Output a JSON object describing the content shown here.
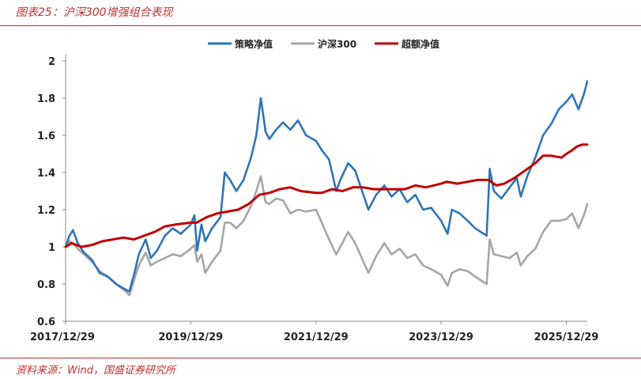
{
  "caption": "图表25：沪深300增强组合表现",
  "source": "资料来源：Wind，国盛证券研究所",
  "chart_data": {
    "type": "line",
    "title": "",
    "xlabel": "",
    "ylabel": "",
    "ylim": [
      0.6,
      2.0
    ],
    "yticks": [
      "0.6",
      "0.8",
      "1",
      "1.2",
      "1.4",
      "1.6",
      "1.8",
      "2"
    ],
    "x_range": [
      "2017/12/29",
      "2026/04/30"
    ],
    "xticks": [
      "2017/12/29",
      "2019/12/29",
      "2021/12/29",
      "2023/12/29",
      "2025/12/29"
    ],
    "grid": false,
    "legend_position": "top",
    "series": [
      {
        "name": "策略净值",
        "color": "#2e75b6",
        "points": [
          [
            "2017/12/29",
            1.0
          ],
          [
            "2018/01/20",
            1.06
          ],
          [
            "2018/02/10",
            1.09
          ],
          [
            "2018/03/10",
            1.02
          ],
          [
            "2018/04/15",
            0.97
          ],
          [
            "2018/06/01",
            0.93
          ],
          [
            "2018/07/15",
            0.86
          ],
          [
            "2018/09/01",
            0.84
          ],
          [
            "2018/10/20",
            0.8
          ],
          [
            "2018/12/15",
            0.77
          ],
          [
            "2019/01/05",
            0.76
          ],
          [
            "2019/02/01",
            0.85
          ],
          [
            "2019/03/01",
            0.96
          ],
          [
            "2019/04/10",
            1.04
          ],
          [
            "2019/05/10",
            0.94
          ],
          [
            "2019/06/15",
            0.98
          ],
          [
            "2019/08/01",
            1.06
          ],
          [
            "2019/09/15",
            1.1
          ],
          [
            "2019/11/01",
            1.07
          ],
          [
            "2019/12/29",
            1.12
          ],
          [
            "2020/01/20",
            1.17
          ],
          [
            "2020/02/05",
            0.98
          ],
          [
            "2020/03/01",
            1.12
          ],
          [
            "2020/03/23",
            1.03
          ],
          [
            "2020/05/01",
            1.1
          ],
          [
            "2020/06/20",
            1.16
          ],
          [
            "2020/07/15",
            1.4
          ],
          [
            "2020/08/15",
            1.36
          ],
          [
            "2020/09/20",
            1.3
          ],
          [
            "2020/11/01",
            1.36
          ],
          [
            "2020/12/15",
            1.48
          ],
          [
            "2021/01/15",
            1.6
          ],
          [
            "2021/02/10",
            1.8
          ],
          [
            "2021/03/10",
            1.62
          ],
          [
            "2021/04/01",
            1.58
          ],
          [
            "2021/05/10",
            1.63
          ],
          [
            "2021/06/20",
            1.67
          ],
          [
            "2021/08/01",
            1.63
          ],
          [
            "2021/09/15",
            1.68
          ],
          [
            "2021/11/01",
            1.6
          ],
          [
            "2021/12/29",
            1.57
          ],
          [
            "2022/02/01",
            1.52
          ],
          [
            "2022/03/15",
            1.47
          ],
          [
            "2022/04/26",
            1.3
          ],
          [
            "2022/05/20",
            1.36
          ],
          [
            "2022/07/05",
            1.45
          ],
          [
            "2022/08/15",
            1.41
          ],
          [
            "2022/10/31",
            1.2
          ],
          [
            "2022/12/15",
            1.28
          ],
          [
            "2023/02/01",
            1.33
          ],
          [
            "2023/03/15",
            1.27
          ],
          [
            "2023/05/01",
            1.31
          ],
          [
            "2023/06/15",
            1.24
          ],
          [
            "2023/08/01",
            1.28
          ],
          [
            "2023/09/15",
            1.2
          ],
          [
            "2023/11/01",
            1.21
          ],
          [
            "2023/12/29",
            1.14
          ],
          [
            "2024/02/05",
            1.07
          ],
          [
            "2024/03/01",
            1.2
          ],
          [
            "2024/04/15",
            1.18
          ],
          [
            "2024/06/01",
            1.14
          ],
          [
            "2024/07/15",
            1.1
          ],
          [
            "2024/09/20",
            1.06
          ],
          [
            "2024/10/08",
            1.42
          ],
          [
            "2024/11/01",
            1.3
          ],
          [
            "2024/12/15",
            1.26
          ],
          [
            "2025/02/01",
            1.32
          ],
          [
            "2025/03/15",
            1.37
          ],
          [
            "2025/04/07",
            1.27
          ],
          [
            "2025/05/15",
            1.38
          ],
          [
            "2025/07/01",
            1.48
          ],
          [
            "2025/08/15",
            1.6
          ],
          [
            "2025/10/01",
            1.66
          ],
          [
            "2025/11/15",
            1.74
          ],
          [
            "2025/12/29",
            1.78
          ],
          [
            "2026/02/01",
            1.82
          ],
          [
            "2026/03/10",
            1.74
          ],
          [
            "2026/04/10",
            1.82
          ],
          [
            "2026/04/30",
            1.89
          ]
        ]
      },
      {
        "name": "沪深300",
        "color": "#a6a6a6",
        "points": [
          [
            "2017/12/29",
            1.0
          ],
          [
            "2018/01/20",
            1.03
          ],
          [
            "2018/02/10",
            1.02
          ],
          [
            "2018/03/10",
            0.99
          ],
          [
            "2018/04/15",
            0.96
          ],
          [
            "2018/06/01",
            0.92
          ],
          [
            "2018/07/15",
            0.87
          ],
          [
            "2018/09/01",
            0.84
          ],
          [
            "2018/10/20",
            0.8
          ],
          [
            "2018/12/15",
            0.76
          ],
          [
            "2019/01/05",
            0.74
          ],
          [
            "2019/02/01",
            0.82
          ],
          [
            "2019/03/01",
            0.9
          ],
          [
            "2019/04/10",
            0.97
          ],
          [
            "2019/05/10",
            0.9
          ],
          [
            "2019/06/15",
            0.92
          ],
          [
            "2019/08/01",
            0.94
          ],
          [
            "2019/09/15",
            0.96
          ],
          [
            "2019/11/01",
            0.95
          ],
          [
            "2019/12/29",
            0.99
          ],
          [
            "2020/01/20",
            1.01
          ],
          [
            "2020/02/05",
            0.92
          ],
          [
            "2020/03/01",
            0.96
          ],
          [
            "2020/03/23",
            0.86
          ],
          [
            "2020/05/01",
            0.92
          ],
          [
            "2020/06/20",
            0.98
          ],
          [
            "2020/07/15",
            1.13
          ],
          [
            "2020/08/15",
            1.13
          ],
          [
            "2020/09/20",
            1.1
          ],
          [
            "2020/11/01",
            1.14
          ],
          [
            "2020/12/15",
            1.22
          ],
          [
            "2021/01/15",
            1.3
          ],
          [
            "2021/02/10",
            1.38
          ],
          [
            "2021/03/10",
            1.24
          ],
          [
            "2021/04/01",
            1.23
          ],
          [
            "2021/05/10",
            1.26
          ],
          [
            "2021/06/20",
            1.25
          ],
          [
            "2021/08/01",
            1.18
          ],
          [
            "2021/09/15",
            1.2
          ],
          [
            "2021/11/01",
            1.19
          ],
          [
            "2021/12/29",
            1.2
          ],
          [
            "2022/02/01",
            1.13
          ],
          [
            "2022/03/15",
            1.04
          ],
          [
            "2022/04/26",
            0.96
          ],
          [
            "2022/05/20",
            1.0
          ],
          [
            "2022/07/05",
            1.08
          ],
          [
            "2022/08/15",
            1.02
          ],
          [
            "2022/10/31",
            0.86
          ],
          [
            "2022/12/15",
            0.95
          ],
          [
            "2023/02/01",
            1.02
          ],
          [
            "2023/03/15",
            0.96
          ],
          [
            "2023/05/01",
            0.99
          ],
          [
            "2023/06/15",
            0.94
          ],
          [
            "2023/08/01",
            0.96
          ],
          [
            "2023/09/15",
            0.9
          ],
          [
            "2023/11/01",
            0.88
          ],
          [
            "2023/12/29",
            0.85
          ],
          [
            "2024/02/05",
            0.79
          ],
          [
            "2024/03/01",
            0.86
          ],
          [
            "2024/04/15",
            0.88
          ],
          [
            "2024/06/01",
            0.87
          ],
          [
            "2024/07/15",
            0.84
          ],
          [
            "2024/09/20",
            0.8
          ],
          [
            "2024/10/08",
            1.04
          ],
          [
            "2024/11/01",
            0.96
          ],
          [
            "2024/12/15",
            0.95
          ],
          [
            "2025/02/01",
            0.94
          ],
          [
            "2025/03/15",
            0.97
          ],
          [
            "2025/04/07",
            0.9
          ],
          [
            "2025/05/15",
            0.95
          ],
          [
            "2025/07/01",
            0.99
          ],
          [
            "2025/08/15",
            1.08
          ],
          [
            "2025/10/01",
            1.14
          ],
          [
            "2025/11/15",
            1.14
          ],
          [
            "2025/12/29",
            1.15
          ],
          [
            "2026/02/01",
            1.18
          ],
          [
            "2026/03/10",
            1.1
          ],
          [
            "2026/04/10",
            1.17
          ],
          [
            "2026/04/30",
            1.23
          ]
        ]
      },
      {
        "name": "超额净值",
        "color": "#c00000",
        "points": [
          [
            "2017/12/29",
            1.0
          ],
          [
            "2018/02/01",
            1.02
          ],
          [
            "2018/04/01",
            1.0
          ],
          [
            "2018/06/01",
            1.01
          ],
          [
            "2018/08/01",
            1.03
          ],
          [
            "2018/10/01",
            1.04
          ],
          [
            "2018/12/01",
            1.05
          ],
          [
            "2019/02/01",
            1.04
          ],
          [
            "2019/04/01",
            1.06
          ],
          [
            "2019/06/01",
            1.08
          ],
          [
            "2019/08/01",
            1.11
          ],
          [
            "2019/10/01",
            1.12
          ],
          [
            "2019/12/29",
            1.13
          ],
          [
            "2020/02/01",
            1.13
          ],
          [
            "2020/04/01",
            1.16
          ],
          [
            "2020/06/01",
            1.18
          ],
          [
            "2020/08/01",
            1.19
          ],
          [
            "2020/10/01",
            1.2
          ],
          [
            "2020/12/01",
            1.23
          ],
          [
            "2021/02/01",
            1.28
          ],
          [
            "2021/04/01",
            1.29
          ],
          [
            "2021/06/01",
            1.31
          ],
          [
            "2021/08/01",
            1.32
          ],
          [
            "2021/10/01",
            1.3
          ],
          [
            "2021/12/29",
            1.29
          ],
          [
            "2022/02/01",
            1.29
          ],
          [
            "2022/04/01",
            1.31
          ],
          [
            "2022/06/01",
            1.3
          ],
          [
            "2022/08/01",
            1.32
          ],
          [
            "2022/10/01",
            1.32
          ],
          [
            "2022/12/01",
            1.31
          ],
          [
            "2023/02/01",
            1.31
          ],
          [
            "2023/04/01",
            1.31
          ],
          [
            "2023/06/01",
            1.31
          ],
          [
            "2023/08/01",
            1.33
          ],
          [
            "2023/10/01",
            1.32
          ],
          [
            "2023/12/29",
            1.34
          ],
          [
            "2024/02/01",
            1.35
          ],
          [
            "2024/04/01",
            1.34
          ],
          [
            "2024/06/01",
            1.35
          ],
          [
            "2024/08/01",
            1.36
          ],
          [
            "2024/10/01",
            1.36
          ],
          [
            "2024/11/15",
            1.33
          ],
          [
            "2025/01/01",
            1.34
          ],
          [
            "2025/03/01",
            1.37
          ],
          [
            "2025/05/01",
            1.41
          ],
          [
            "2025/07/01",
            1.45
          ],
          [
            "2025/08/15",
            1.49
          ],
          [
            "2025/10/01",
            1.49
          ],
          [
            "2025/12/01",
            1.48
          ],
          [
            "2025/12/29",
            1.5
          ],
          [
            "2026/02/01",
            1.52
          ],
          [
            "2026/03/01",
            1.54
          ],
          [
            "2026/04/01",
            1.55
          ],
          [
            "2026/04/30",
            1.55
          ]
        ]
      }
    ]
  }
}
